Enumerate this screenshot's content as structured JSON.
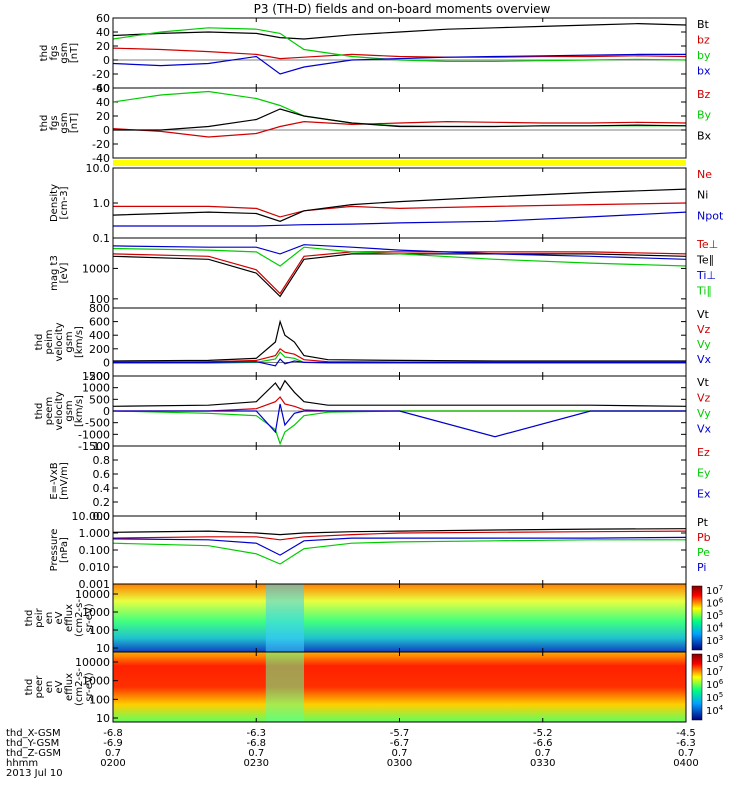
{
  "title": "P3 (TH-D) fields and on-board moments overview",
  "time_axis": {
    "row_labels": [
      "thd_X-GSM",
      "thd_Y-GSM",
      "thd_Z-GSM",
      "hhmm",
      "2013 Jul 10"
    ],
    "ticks": [
      {
        "x": "-6.8",
        "y": "-6.9",
        "z": "0.7",
        "t": "0200"
      },
      {
        "x": "-6.3",
        "y": "-6.8",
        "z": "0.7",
        "t": "0230"
      },
      {
        "x": "-5.7",
        "y": "-6.7",
        "z": "0.7",
        "t": "0300"
      },
      {
        "x": "-5.2",
        "y": "-6.6",
        "z": "0.7",
        "t": "0330"
      },
      {
        "x": "-4.5",
        "y": "-6.3",
        "z": "0.7",
        "t": "0400"
      }
    ]
  },
  "chart_data": [
    {
      "type": "line",
      "ylabel_lines": [
        "thd",
        "fgs",
        "gsm",
        "[nT]"
      ],
      "yticks": [
        "60",
        "40",
        "20",
        "0",
        "-20",
        "-40"
      ],
      "ylim": [
        -40,
        60
      ],
      "series": [
        {
          "name": "Bt",
          "color": "#000000",
          "x": [
            0,
            10,
            20,
            30,
            35,
            40,
            50,
            60,
            70,
            80,
            90,
            100,
            110,
            120
          ],
          "y": [
            35,
            38,
            40,
            38,
            32,
            30,
            36,
            40,
            44,
            46,
            48,
            50,
            52,
            50
          ]
        },
        {
          "name": "bz",
          "color": "#d00000",
          "x": [
            0,
            10,
            20,
            30,
            35,
            40,
            50,
            60,
            70,
            80,
            90,
            100,
            110,
            120
          ],
          "y": [
            17,
            15,
            12,
            8,
            2,
            4,
            8,
            5,
            4,
            4,
            5,
            5,
            6,
            5
          ]
        },
        {
          "name": "by",
          "color": "#00cc00",
          "x": [
            0,
            10,
            20,
            30,
            35,
            40,
            50,
            60,
            70,
            80,
            90,
            100,
            110,
            120
          ],
          "y": [
            30,
            40,
            46,
            44,
            38,
            15,
            5,
            0,
            -2,
            -2,
            -1,
            0,
            1,
            0
          ]
        },
        {
          "name": "bx",
          "color": "#0000cc",
          "x": [
            0,
            10,
            20,
            30,
            35,
            40,
            50,
            60,
            70,
            80,
            90,
            100,
            110,
            120
          ],
          "y": [
            -5,
            -8,
            -5,
            5,
            -20,
            -10,
            0,
            2,
            4,
            5,
            6,
            7,
            8,
            8
          ]
        }
      ]
    },
    {
      "type": "line",
      "ylabel_lines": [
        "thd",
        "fgs",
        "gsm",
        "[nT]"
      ],
      "yticks": [
        "60",
        "40",
        "20",
        "0",
        "-20",
        "-40"
      ],
      "ylim": [
        -40,
        60
      ],
      "series": [
        {
          "name": "Bz",
          "color": "#d00000",
          "x": [
            0,
            10,
            20,
            30,
            35,
            40,
            50,
            60,
            70,
            80,
            90,
            100,
            110,
            120
          ],
          "y": [
            2,
            -2,
            -10,
            -5,
            5,
            12,
            8,
            10,
            12,
            11,
            10,
            10,
            11,
            10
          ]
        },
        {
          "name": "By",
          "color": "#00cc00",
          "x": [
            0,
            10,
            20,
            30,
            35,
            40,
            50,
            60,
            70,
            80,
            90,
            100,
            110,
            120
          ],
          "y": [
            40,
            50,
            55,
            45,
            35,
            20,
            10,
            6,
            5,
            5,
            6,
            6,
            6,
            6
          ]
        },
        {
          "name": "Bx",
          "color": "#000000",
          "x": [
            0,
            10,
            20,
            30,
            35,
            40,
            50,
            60,
            70,
            80,
            90,
            100,
            110,
            120
          ],
          "y": [
            0,
            0,
            5,
            15,
            30,
            20,
            10,
            5,
            5,
            5,
            6,
            6,
            7,
            6
          ]
        }
      ]
    },
    {
      "type": "line",
      "ylabel_lines": [
        "Density",
        "[cm-3]"
      ],
      "yticks": [
        "10.0",
        "1.0",
        "0.1"
      ],
      "yscale": "log",
      "ylim": [
        0.1,
        10
      ],
      "series": [
        {
          "name": "Ne",
          "color": "#d00000",
          "x": [
            0,
            20,
            30,
            35,
            40,
            50,
            60,
            80,
            100,
            120
          ],
          "y": [
            0.8,
            0.8,
            0.7,
            0.4,
            0.6,
            0.8,
            0.7,
            0.8,
            0.9,
            1.0
          ]
        },
        {
          "name": "Ni",
          "color": "#000000",
          "x": [
            0,
            20,
            30,
            35,
            40,
            50,
            60,
            80,
            100,
            120
          ],
          "y": [
            0.45,
            0.55,
            0.5,
            0.3,
            0.6,
            0.9,
            1.1,
            1.5,
            2.0,
            2.5
          ]
        },
        {
          "name": "Npot",
          "color": "#0000cc",
          "x": [
            0,
            20,
            30,
            35,
            40,
            50,
            60,
            80,
            100,
            120
          ],
          "y": [
            0.22,
            0.22,
            0.22,
            0.23,
            0.24,
            0.25,
            0.27,
            0.3,
            0.4,
            0.55
          ]
        }
      ]
    },
    {
      "type": "line",
      "ylabel_lines": [
        "mag t3",
        "[eV]"
      ],
      "yticks": [
        "1000",
        "100"
      ],
      "yscale": "log",
      "ylim": [
        50,
        10000
      ],
      "series": [
        {
          "name": "Te⊥",
          "color": "#d00000",
          "x": [
            0,
            20,
            30,
            35,
            40,
            50,
            60,
            80,
            100,
            120
          ],
          "y": [
            3000,
            2500,
            900,
            150,
            2500,
            3500,
            3500,
            3500,
            3500,
            3000
          ]
        },
        {
          "name": "Te∥",
          "color": "#000000",
          "x": [
            0,
            20,
            30,
            35,
            40,
            50,
            60,
            80,
            100,
            120
          ],
          "y": [
            2500,
            2000,
            700,
            120,
            2000,
            3000,
            3000,
            3000,
            3000,
            2500
          ]
        },
        {
          "name": "Ti⊥",
          "color": "#0000cc",
          "x": [
            0,
            20,
            30,
            35,
            40,
            50,
            60,
            80,
            100,
            120
          ],
          "y": [
            5500,
            5000,
            5000,
            3000,
            6000,
            5000,
            4000,
            3000,
            2500,
            2000
          ]
        },
        {
          "name": "Ti∥",
          "color": "#00cc00",
          "x": [
            0,
            20,
            30,
            35,
            40,
            50,
            60,
            80,
            100,
            120
          ],
          "y": [
            4500,
            4000,
            3500,
            1200,
            5000,
            3500,
            3000,
            2000,
            1500,
            1200
          ]
        }
      ]
    },
    {
      "type": "line",
      "ylabel_lines": [
        "thd",
        "peim",
        "velocity",
        "gsm",
        "[km/s]"
      ],
      "yticks": [
        "800",
        "600",
        "400",
        "200",
        "0",
        "-200"
      ],
      "ylim": [
        -200,
        800
      ],
      "series": [
        {
          "name": "Vt",
          "color": "#000000",
          "x": [
            0,
            20,
            30,
            34,
            35,
            36,
            38,
            40,
            45,
            60,
            80,
            100,
            120
          ],
          "y": [
            20,
            30,
            60,
            300,
            600,
            400,
            300,
            100,
            40,
            30,
            20,
            20,
            20
          ]
        },
        {
          "name": "Vz",
          "color": "#d00000",
          "x": [
            0,
            20,
            30,
            34,
            35,
            36,
            38,
            40,
            45,
            60,
            80,
            100,
            120
          ],
          "y": [
            0,
            10,
            30,
            100,
            200,
            150,
            120,
            40,
            10,
            5,
            0,
            0,
            0
          ]
        },
        {
          "name": "Vy",
          "color": "#00cc00",
          "x": [
            0,
            20,
            30,
            34,
            35,
            36,
            38,
            40,
            45,
            60,
            80,
            100,
            120
          ],
          "y": [
            -10,
            -10,
            0,
            50,
            150,
            80,
            60,
            0,
            -10,
            -10,
            -10,
            -10,
            -10
          ]
        },
        {
          "name": "Vx",
          "color": "#0000cc",
          "x": [
            0,
            20,
            30,
            34,
            35,
            36,
            38,
            40,
            45,
            60,
            80,
            100,
            120
          ],
          "y": [
            0,
            0,
            10,
            -50,
            50,
            -20,
            20,
            0,
            0,
            0,
            0,
            0,
            0
          ]
        }
      ]
    },
    {
      "type": "line",
      "ylabel_lines": [
        "thd",
        "peem",
        "velocity",
        "gsm",
        "[km/s]"
      ],
      "yticks": [
        "1500",
        "1000",
        "500",
        "0",
        "-500",
        "-1000",
        "-1500"
      ],
      "ylim": [
        -1500,
        1500
      ],
      "series": [
        {
          "name": "Vt",
          "color": "#000000",
          "x": [
            0,
            20,
            30,
            34,
            35,
            36,
            38,
            40,
            45,
            60,
            80,
            100,
            120
          ],
          "y": [
            200,
            250,
            400,
            1200,
            900,
            1300,
            800,
            400,
            250,
            250,
            250,
            250,
            200
          ]
        },
        {
          "name": "Vz",
          "color": "#d00000",
          "x": [
            0,
            20,
            30,
            34,
            35,
            36,
            38,
            40,
            45,
            60,
            80,
            100,
            120
          ],
          "y": [
            0,
            0,
            100,
            400,
            600,
            300,
            200,
            50,
            0,
            0,
            0,
            0,
            0
          ]
        },
        {
          "name": "Vy",
          "color": "#00cc00",
          "x": [
            0,
            20,
            30,
            34,
            35,
            36,
            38,
            40,
            45,
            60,
            80,
            100,
            120
          ],
          "y": [
            0,
            -100,
            -200,
            -800,
            -1400,
            -900,
            -600,
            -200,
            -50,
            0,
            0,
            0,
            0
          ]
        },
        {
          "name": "Vx",
          "color": "#0000cc",
          "x": [
            0,
            20,
            30,
            34,
            35,
            36,
            38,
            40,
            45,
            60,
            80,
            100,
            120
          ],
          "y": [
            0,
            0,
            0,
            -900,
            300,
            -600,
            -100,
            0,
            0,
            0,
            -1100,
            0,
            0
          ]
        }
      ]
    },
    {
      "type": "line",
      "ylabel_lines": [
        "E=-VxB",
        "[mV/m]"
      ],
      "yticks": [
        "1.0",
        "0.8",
        "0.6",
        "0.4",
        "0.2",
        "0.0"
      ],
      "ylim": [
        0,
        1
      ],
      "series": [
        {
          "name": "Ez",
          "color": "#d00000",
          "x": [],
          "y": []
        },
        {
          "name": "Ey",
          "color": "#00cc00",
          "x": [],
          "y": []
        },
        {
          "name": "Ex",
          "color": "#0000cc",
          "x": [],
          "y": []
        }
      ]
    },
    {
      "type": "line",
      "ylabel_lines": [
        "Pressure",
        "[nPa]"
      ],
      "yticks": [
        "10.000",
        "1.000",
        "0.100",
        "0.010",
        "0.001"
      ],
      "yscale": "log",
      "ylim": [
        0.001,
        10
      ],
      "series": [
        {
          "name": "Pt",
          "color": "#000000",
          "x": [
            0,
            20,
            30,
            35,
            40,
            50,
            60,
            80,
            100,
            120
          ],
          "y": [
            1.1,
            1.3,
            1.0,
            0.8,
            1.0,
            1.2,
            1.3,
            1.5,
            1.7,
            1.8
          ]
        },
        {
          "name": "Pb",
          "color": "#d00000",
          "x": [
            0,
            20,
            30,
            35,
            40,
            50,
            60,
            80,
            100,
            120
          ],
          "y": [
            0.5,
            0.6,
            0.6,
            0.4,
            0.6,
            0.8,
            1.0,
            1.1,
            1.2,
            1.3
          ]
        },
        {
          "name": "Pe",
          "color": "#00cc00",
          "x": [
            0,
            20,
            30,
            35,
            40,
            50,
            60,
            80,
            100,
            120
          ],
          "y": [
            0.25,
            0.18,
            0.06,
            0.015,
            0.12,
            0.25,
            0.3,
            0.35,
            0.4,
            0.4
          ]
        },
        {
          "name": "Pi",
          "color": "#0000cc",
          "x": [
            0,
            20,
            30,
            35,
            40,
            50,
            60,
            80,
            100,
            120
          ],
          "y": [
            0.45,
            0.4,
            0.25,
            0.05,
            0.35,
            0.5,
            0.5,
            0.5,
            0.5,
            0.55
          ]
        }
      ]
    },
    {
      "type": "heatmap",
      "ylabel_lines": [
        "thd",
        "peir",
        "en",
        "eV",
        "efflux",
        "(cm2-s-",
        "sr-eV)"
      ],
      "yticks": [
        "10000",
        "1000",
        "100",
        "10"
      ],
      "colorbar_ticks": [
        "10^7",
        "10^6",
        "10^5",
        "10^4",
        "10^3"
      ]
    },
    {
      "type": "heatmap",
      "ylabel_lines": [
        "thd",
        "peer",
        "en",
        "eV",
        "efflux",
        "(cm2-s-",
        "sr-eV)"
      ],
      "yticks": [
        "10000",
        "1000",
        "100",
        "10"
      ],
      "colorbar_ticks": [
        "10^8",
        "10^7",
        "10^6",
        "10^5",
        "10^4"
      ]
    }
  ]
}
